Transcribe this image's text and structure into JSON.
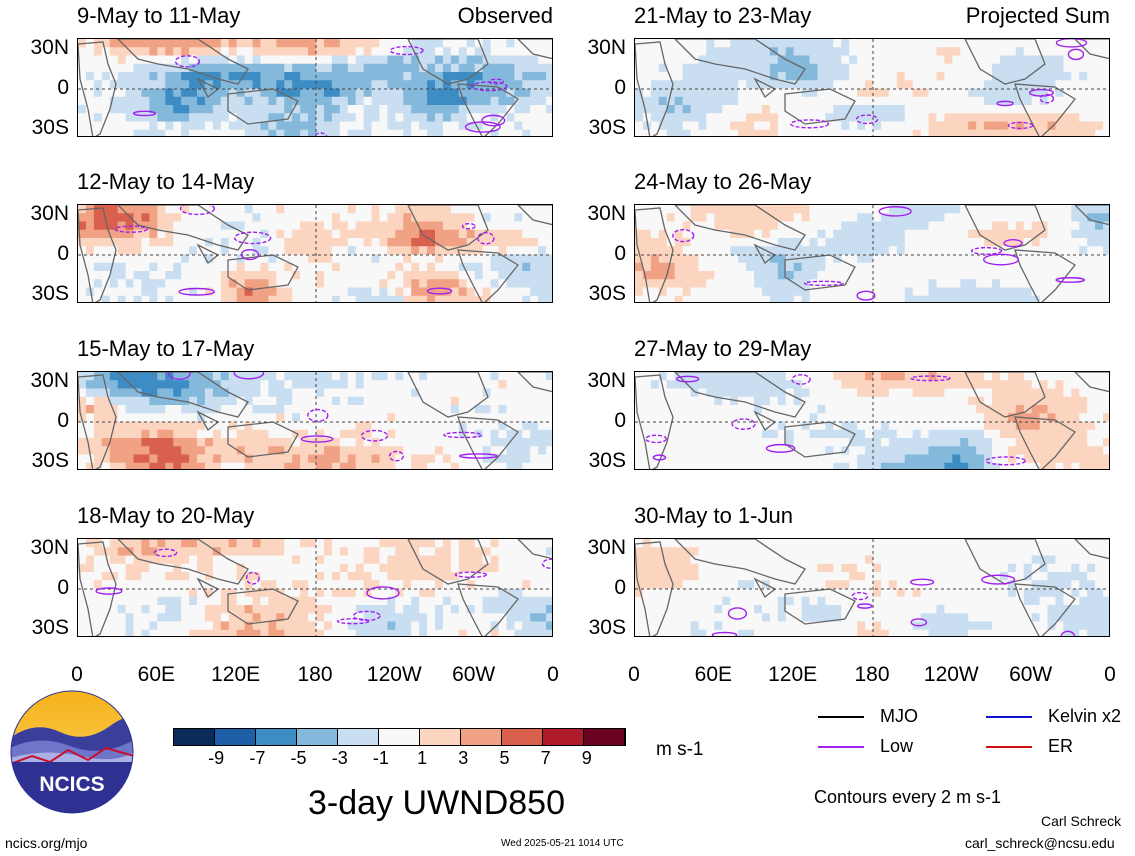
{
  "panels": [
    {
      "title": "9-May to 11-May",
      "label": "Observed",
      "column": "left",
      "row": 0,
      "style": "obs"
    },
    {
      "title": "12-May to 14-May",
      "label": "",
      "column": "left",
      "row": 1,
      "style": "obs"
    },
    {
      "title": "15-May to 17-May",
      "label": "",
      "column": "left",
      "row": 2,
      "style": "obs"
    },
    {
      "title": "18-May to 20-May",
      "label": "",
      "column": "left",
      "row": 3,
      "style": "obs"
    },
    {
      "title": "21-May to 23-May",
      "label": "Projected Sum",
      "column": "right",
      "row": 0,
      "style": "proj"
    },
    {
      "title": "24-May to 26-May",
      "label": "",
      "column": "right",
      "row": 1,
      "style": "proj"
    },
    {
      "title": "27-May to 29-May",
      "label": "",
      "column": "right",
      "row": 2,
      "style": "proj"
    },
    {
      "title": "30-May to 1-Jun",
      "label": "",
      "column": "right",
      "row": 3,
      "style": "proj"
    }
  ],
  "y_axis_labels": [
    "30N",
    "0",
    "30S"
  ],
  "x_axis_labels": [
    "0",
    "60E",
    "120E",
    "180",
    "120W",
    "60W",
    "0"
  ],
  "colorbar": {
    "labels": [
      "-9",
      "-7",
      "-5",
      "-3",
      "-1",
      "1",
      "3",
      "5",
      "7",
      "9"
    ],
    "colors": [
      "#0b2b5a",
      "#1f5fa8",
      "#3d8cc4",
      "#84b9db",
      "#c9def0",
      "#f8f8f8",
      "#fbd5c0",
      "#f1a184",
      "#d9604d",
      "#b01b2c",
      "#6b0220"
    ],
    "units": "m s-1"
  },
  "legend": [
    {
      "label": "MJO",
      "color": "#000000"
    },
    {
      "label": "Kelvin x2",
      "color": "#1010d0"
    },
    {
      "label": "Low",
      "color": "#a020f0"
    },
    {
      "label": "ER",
      "color": "#d01010"
    }
  ],
  "contours_note": "Contours every 2 m s-1",
  "main_title": "3-day UWND850",
  "logo_text": "NCICS",
  "website": "ncics.org/mjo",
  "timestamp": "Wed 2025-05-21 1014 UTC",
  "author": "Carl Schreck",
  "email": "carl_schreck@ncsu.edu"
}
